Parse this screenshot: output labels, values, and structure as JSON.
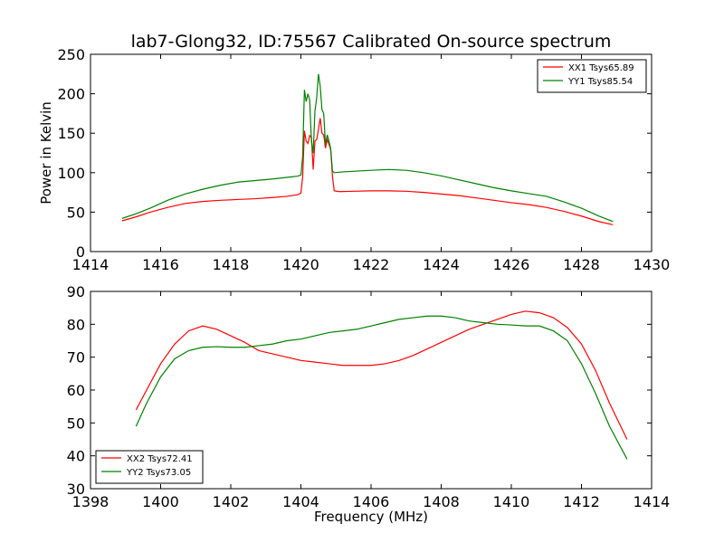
{
  "chart_data": [
    {
      "type": "line",
      "title": "lab7-Glong32, ID:75567 Calibrated On-source spectrum",
      "xlabel": "",
      "ylabel": "Power in Kelvin",
      "xlim": [
        1414,
        1430
      ],
      "ylim": [
        0,
        250
      ],
      "xticks": [
        "1414",
        "1416",
        "1418",
        "1420",
        "1422",
        "1424",
        "1426",
        "1428",
        "1430"
      ],
      "yticks": [
        "0",
        "50",
        "100",
        "150",
        "200",
        "250"
      ],
      "legend_position": "top-right",
      "grid": false,
      "series": [
        {
          "name": "XX1 Tsys65.89",
          "color": "#ff0000",
          "points": [
            [
              1414.9,
              39
            ],
            [
              1415.3,
              44
            ],
            [
              1415.7,
              50
            ],
            [
              1416.2,
              56
            ],
            [
              1416.7,
              61
            ],
            [
              1417.2,
              63.5
            ],
            [
              1417.7,
              65
            ],
            [
              1418.2,
              66
            ],
            [
              1418.7,
              67
            ],
            [
              1419.2,
              68.5
            ],
            [
              1419.6,
              70
            ],
            [
              1419.9,
              72
            ],
            [
              1420.0,
              74
            ],
            [
              1420.05,
              95
            ],
            [
              1420.1,
              153
            ],
            [
              1420.15,
              140
            ],
            [
              1420.2,
              137
            ],
            [
              1420.25,
              147
            ],
            [
              1420.3,
              145
            ],
            [
              1420.35,
              104
            ],
            [
              1420.4,
              140
            ],
            [
              1420.45,
              142
            ],
            [
              1420.5,
              155
            ],
            [
              1420.55,
              169
            ],
            [
              1420.6,
              150
            ],
            [
              1420.65,
              148
            ],
            [
              1420.7,
              131
            ],
            [
              1420.75,
              142
            ],
            [
              1420.8,
              136
            ],
            [
              1420.85,
              129
            ],
            [
              1420.9,
              95
            ],
            [
              1420.95,
              77
            ],
            [
              1421.1,
              76
            ],
            [
              1421.5,
              76.5
            ],
            [
              1422.0,
              77
            ],
            [
              1422.5,
              77
            ],
            [
              1423.0,
              76.5
            ],
            [
              1423.5,
              75
            ],
            [
              1424.0,
              73
            ],
            [
              1424.5,
              71
            ],
            [
              1425.0,
              68
            ],
            [
              1425.5,
              65
            ],
            [
              1426.0,
              62
            ],
            [
              1426.5,
              59.5
            ],
            [
              1427.0,
              56
            ],
            [
              1427.5,
              51
            ],
            [
              1428.0,
              45
            ],
            [
              1428.5,
              38
            ],
            [
              1428.9,
              34
            ]
          ]
        },
        {
          "name": "YY1 Tsys85.54",
          "color": "#008000",
          "points": [
            [
              1414.9,
              42
            ],
            [
              1415.3,
              48
            ],
            [
              1415.7,
              55
            ],
            [
              1416.2,
              65
            ],
            [
              1416.7,
              73
            ],
            [
              1417.2,
              79
            ],
            [
              1417.7,
              84
            ],
            [
              1418.2,
              88
            ],
            [
              1418.7,
              90
            ],
            [
              1419.2,
              92
            ],
            [
              1419.6,
              94
            ],
            [
              1419.9,
              95.5
            ],
            [
              1420.0,
              97
            ],
            [
              1420.05,
              120
            ],
            [
              1420.1,
              205
            ],
            [
              1420.15,
              190
            ],
            [
              1420.2,
              200
            ],
            [
              1420.25,
              192
            ],
            [
              1420.3,
              140
            ],
            [
              1420.35,
              125
            ],
            [
              1420.4,
              178
            ],
            [
              1420.45,
              195
            ],
            [
              1420.5,
              225
            ],
            [
              1420.55,
              210
            ],
            [
              1420.6,
              180
            ],
            [
              1420.65,
              175
            ],
            [
              1420.7,
              135
            ],
            [
              1420.75,
              148
            ],
            [
              1420.8,
              140
            ],
            [
              1420.85,
              130
            ],
            [
              1420.9,
              102
            ],
            [
              1420.95,
              100
            ],
            [
              1421.2,
              101
            ],
            [
              1421.6,
              102
            ],
            [
              1422.0,
              103
            ],
            [
              1422.5,
              104
            ],
            [
              1423.0,
              103
            ],
            [
              1423.5,
              100
            ],
            [
              1424.0,
              96
            ],
            [
              1424.5,
              91
            ],
            [
              1425.0,
              86
            ],
            [
              1425.5,
              81
            ],
            [
              1426.0,
              77
            ],
            [
              1426.5,
              73.5
            ],
            [
              1427.0,
              70
            ],
            [
              1427.5,
              63
            ],
            [
              1428.0,
              55
            ],
            [
              1428.5,
              45
            ],
            [
              1428.9,
              38
            ]
          ]
        }
      ]
    },
    {
      "type": "line",
      "title": "",
      "xlabel": "Frequency (MHz)",
      "ylabel": "",
      "xlim": [
        1398,
        1414
      ],
      "ylim": [
        30,
        90
      ],
      "xticks": [
        "1398",
        "1400",
        "1402",
        "1404",
        "1406",
        "1408",
        "1410",
        "1412",
        "1414"
      ],
      "yticks": [
        "30",
        "40",
        "50",
        "60",
        "70",
        "80",
        "90"
      ],
      "legend_position": "bottom-left",
      "grid": false,
      "series": [
        {
          "name": "XX2 Tsys72.41",
          "color": "#ff0000",
          "points": [
            [
              1399.3,
              54
            ],
            [
              1399.6,
              60
            ],
            [
              1400.0,
              68
            ],
            [
              1400.4,
              74
            ],
            [
              1400.8,
              78
            ],
            [
              1401.2,
              79.5
            ],
            [
              1401.6,
              78.5
            ],
            [
              1402.0,
              76.5
            ],
            [
              1402.4,
              74.5
            ],
            [
              1402.8,
              72
            ],
            [
              1403.2,
              71
            ],
            [
              1403.6,
              70
            ],
            [
              1404.0,
              69
            ],
            [
              1404.4,
              68.5
            ],
            [
              1404.8,
              68
            ],
            [
              1405.2,
              67.5
            ],
            [
              1405.6,
              67.5
            ],
            [
              1406.0,
              67.5
            ],
            [
              1406.4,
              68
            ],
            [
              1406.8,
              69
            ],
            [
              1407.2,
              70.5
            ],
            [
              1407.6,
              72.5
            ],
            [
              1408.0,
              74.5
            ],
            [
              1408.4,
              76.5
            ],
            [
              1408.8,
              78.5
            ],
            [
              1409.2,
              80
            ],
            [
              1409.6,
              81.5
            ],
            [
              1410.0,
              83
            ],
            [
              1410.4,
              84
            ],
            [
              1410.8,
              83.5
            ],
            [
              1411.2,
              82
            ],
            [
              1411.6,
              79
            ],
            [
              1412.0,
              74
            ],
            [
              1412.4,
              66
            ],
            [
              1412.8,
              56
            ],
            [
              1413.3,
              45
            ]
          ]
        },
        {
          "name": "YY2 Tsys73.05",
          "color": "#008000",
          "points": [
            [
              1399.3,
              49
            ],
            [
              1399.6,
              56
            ],
            [
              1400.0,
              64
            ],
            [
              1400.4,
              69.5
            ],
            [
              1400.8,
              72
            ],
            [
              1401.2,
              73
            ],
            [
              1401.6,
              73.2
            ],
            [
              1402.0,
              73
            ],
            [
              1402.4,
              73
            ],
            [
              1402.8,
              73.5
            ],
            [
              1403.2,
              74
            ],
            [
              1403.6,
              75
            ],
            [
              1404.0,
              75.5
            ],
            [
              1404.4,
              76.5
            ],
            [
              1404.8,
              77.5
            ],
            [
              1405.2,
              78
            ],
            [
              1405.6,
              78.5
            ],
            [
              1406.0,
              79.5
            ],
            [
              1406.4,
              80.5
            ],
            [
              1406.8,
              81.5
            ],
            [
              1407.2,
              82
            ],
            [
              1407.6,
              82.5
            ],
            [
              1408.0,
              82.5
            ],
            [
              1408.4,
              82
            ],
            [
              1408.8,
              81
            ],
            [
              1409.2,
              80.5
            ],
            [
              1409.6,
              80
            ],
            [
              1410.0,
              79.8
            ],
            [
              1410.4,
              79.5
            ],
            [
              1410.8,
              79.5
            ],
            [
              1411.2,
              78
            ],
            [
              1411.6,
              75
            ],
            [
              1412.0,
              68
            ],
            [
              1412.4,
              59
            ],
            [
              1412.8,
              49
            ],
            [
              1413.3,
              39
            ]
          ]
        }
      ]
    }
  ]
}
